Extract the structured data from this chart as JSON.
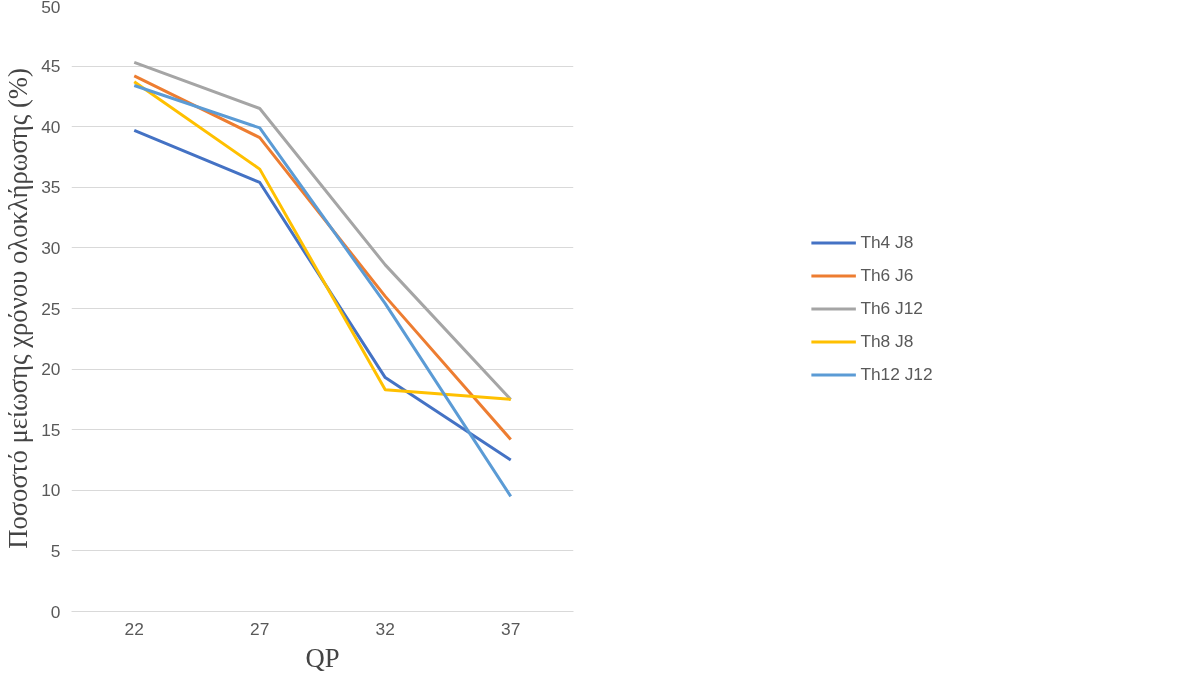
{
  "chart_data": {
    "type": "line",
    "xlabel": "QP",
    "ylabel": "Ποσοστό μείωσης χρόνου ολοκλήρωσης (%)",
    "categories": [
      "22",
      "27",
      "32",
      "37"
    ],
    "series": [
      {
        "name": "Th4 J8",
        "color": "#4472c4",
        "values": [
          39.7,
          35.4,
          19.3,
          12.5
        ]
      },
      {
        "name": "Th6 J6",
        "color": "#ed7d31",
        "values": [
          44.2,
          39.1,
          26.0,
          14.2
        ]
      },
      {
        "name": "Th6 J12",
        "color": "#a5a5a5",
        "values": [
          45.3,
          41.5,
          28.6,
          17.5
        ]
      },
      {
        "name": "Th8 J8",
        "color": "#ffc000",
        "values": [
          43.7,
          36.5,
          18.3,
          17.5
        ]
      },
      {
        "name": "Th12 J12",
        "color": "#5b9bd5",
        "values": [
          43.4,
          39.9,
          25.4,
          9.5
        ]
      }
    ],
    "ylim": [
      0,
      50
    ],
    "yticks": [
      0,
      5,
      10,
      15,
      20,
      25,
      30,
      35,
      40,
      45,
      50
    ],
    "grid": "y",
    "legend": "right",
    "marker": "none",
    "line_style": "solid"
  }
}
